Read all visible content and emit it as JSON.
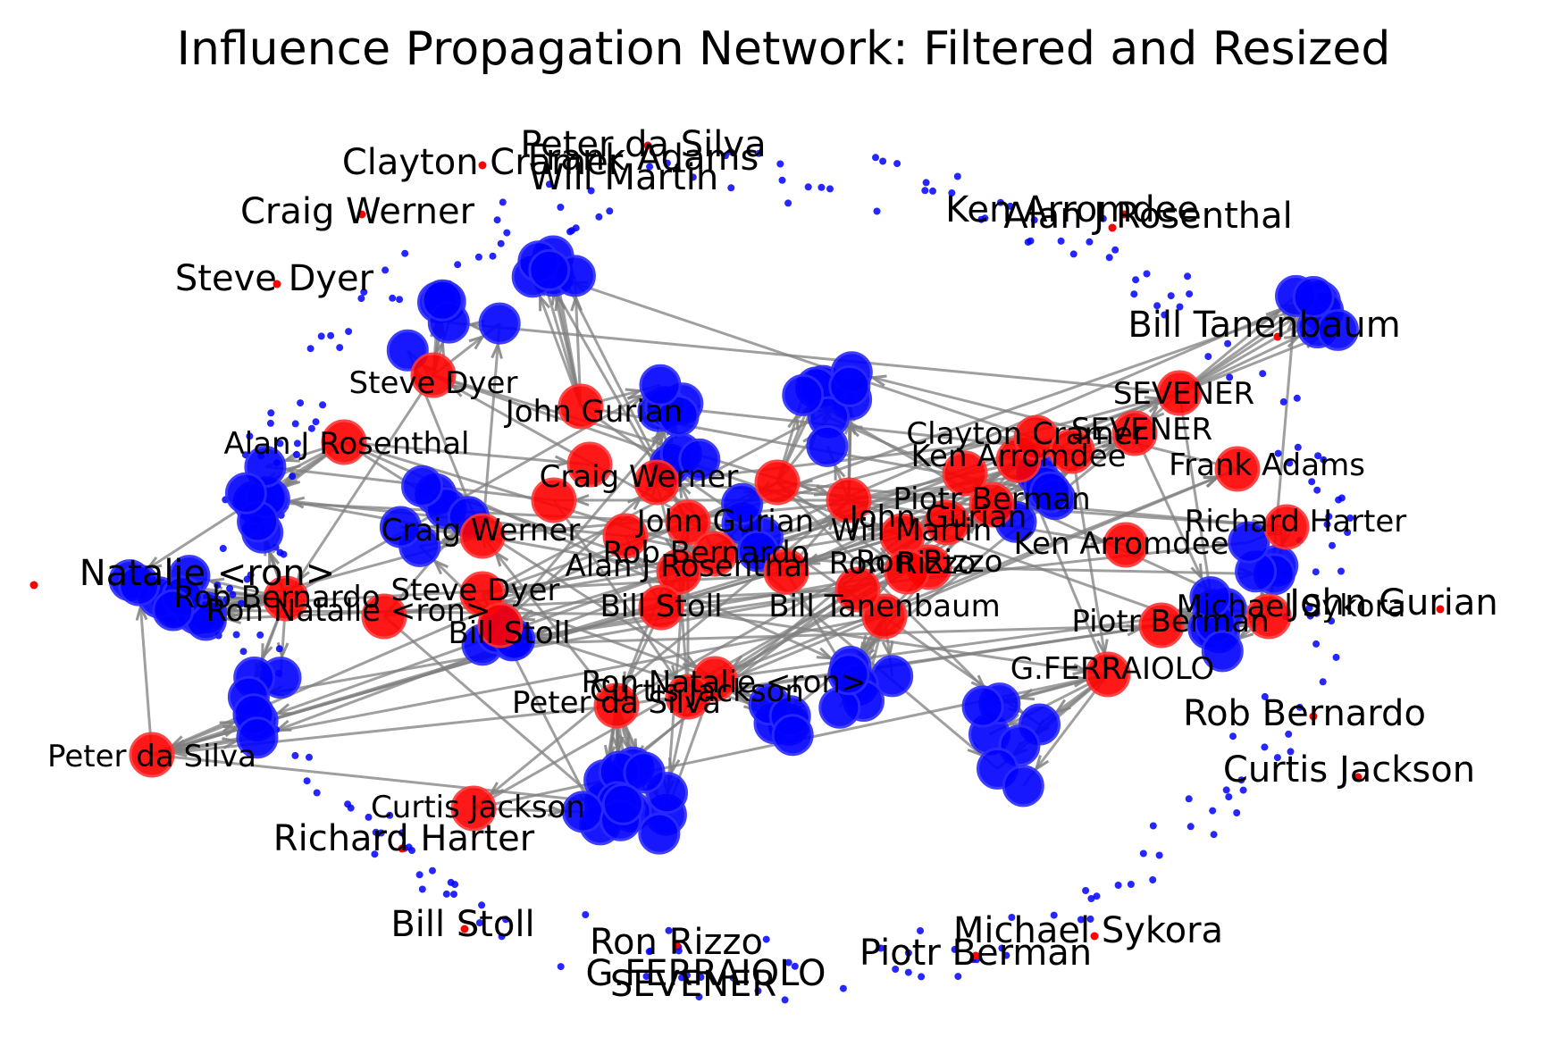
{
  "title": "Influence Propagation Network: Filtered and Resized",
  "colors": {
    "influencer": "#ff0000",
    "follower": "#0000ff",
    "edge": "#808080",
    "background": "#ffffff",
    "text": "#000000"
  },
  "outer_labels": [
    "Peter da Silva",
    "Frank Adams",
    "Will Martin",
    "Clayton Cramer",
    "Craig Werner",
    "Steve Dyer",
    "Ken Arromdee",
    "Alan J Rosenthal",
    "Bill Tanenbaum",
    "Natalie <ron>",
    "John Gurian",
    "Rob Bernardo",
    "Curtis Jackson",
    "Richard Harter",
    "Bill Stoll",
    "Ron Rizzo",
    "G.FERRAIOLO",
    "SEVENER",
    "Michael Sykora",
    "Piotr Berman"
  ],
  "core_labels": [
    "Steve Dyer",
    "John Gurian",
    "Alan J Rosenthal",
    "Craig Werner",
    "Craig Werner",
    "Rob Bernardo",
    "Steve Dyer",
    "Ron Natalie <ron>",
    "Bill Stoll",
    "John Gurian",
    "Rob Bernardo",
    "Alan J Rosenthal",
    "Bill Stoll",
    "Ron Natalie <ron>",
    "Peter da Silva",
    "Curtis Jackson",
    "Peter da Silva",
    "Curtis Jackson",
    "Will Martin",
    "Bill Tanenbaum",
    "Ron Rizzo",
    "Ken Arromdee",
    "Clayton Cramer",
    "SEVENER",
    "SEVENER",
    "Frank Adams",
    "Richard Harter",
    "Michael Sykora",
    "Piotr Berman",
    "G.FERRAIOLO",
    "John Gurian",
    "Ken Arromdee",
    "Piotr Berman",
    "Ron Rizzo"
  ]
}
